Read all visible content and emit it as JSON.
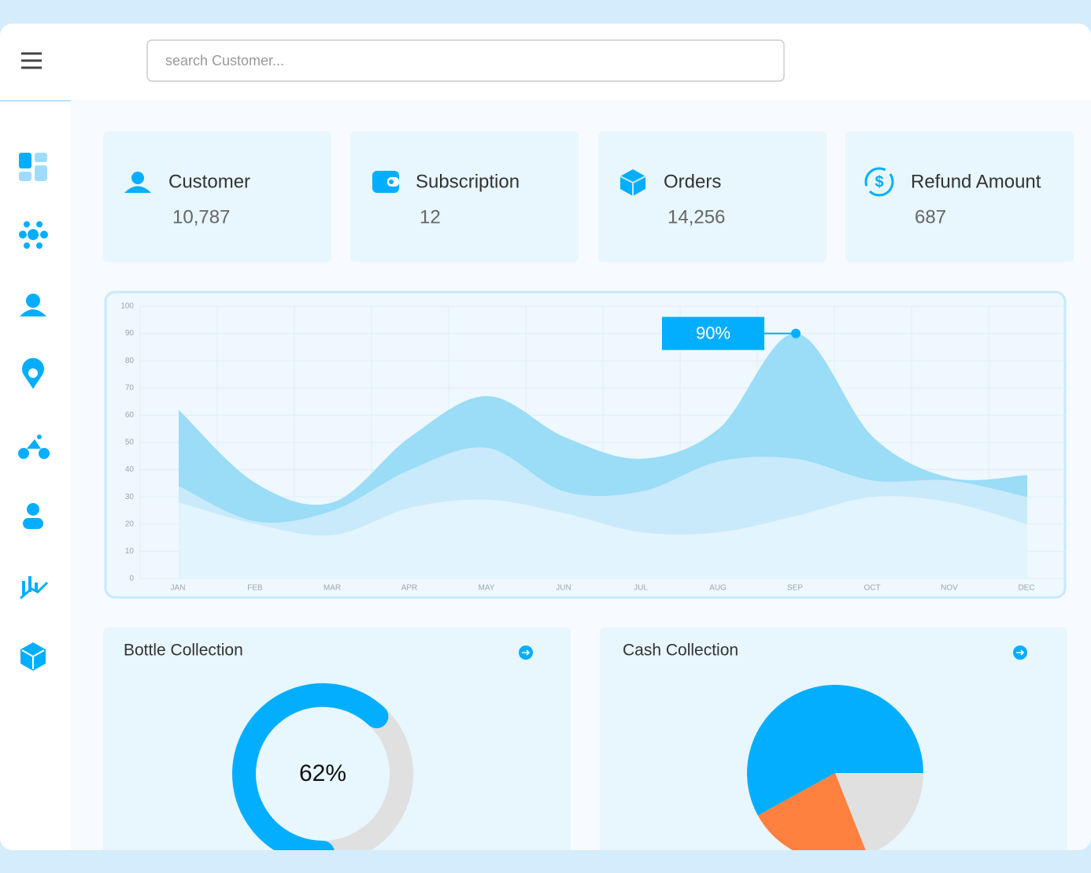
{
  "search": {
    "placeholder": "search Customer..."
  },
  "stats": [
    {
      "label": "Customer",
      "value": "10,787"
    },
    {
      "label": "Subscription",
      "value": "12"
    },
    {
      "label": "Orders",
      "value": "14,256"
    },
    {
      "label": "Refund Amount",
      "value": "687"
    }
  ],
  "chart_data": [
    {
      "type": "area",
      "categories": [
        "JAN",
        "FEB",
        "MAR",
        "APR",
        "MAY",
        "JUN",
        "JUL",
        "AUG",
        "SEP",
        "OCT",
        "NOV",
        "DEC"
      ],
      "ylim": [
        0,
        100
      ],
      "yticks": [
        0,
        10,
        20,
        30,
        40,
        50,
        60,
        70,
        80,
        90,
        100
      ],
      "grid": true,
      "annotation": "90%",
      "series": [
        {
          "color": "#9bdcf6",
          "values": [
            62,
            35,
            28,
            52,
            67,
            52,
            44,
            55,
            90,
            52,
            37,
            38
          ]
        },
        {
          "color": "#c9eafb",
          "values": [
            34,
            21,
            25,
            40,
            48,
            32,
            32,
            43,
            44,
            36,
            36,
            30
          ]
        },
        {
          "color": "#e2f4fd",
          "values": [
            28,
            20,
            16,
            26,
            29,
            24,
            17,
            17,
            23,
            30,
            28,
            20
          ]
        }
      ]
    },
    {
      "type": "donut",
      "title": "Bottle Collection",
      "values": [
        62,
        38
      ],
      "colors": [
        "#03aeff",
        "#e0e0e0"
      ],
      "center_label": "62%"
    },
    {
      "type": "pie",
      "title": "Cash Collection",
      "values": [
        58,
        23,
        19
      ],
      "colors": [
        "#03aeff",
        "#ff8140",
        "#e0e0e0"
      ]
    }
  ]
}
